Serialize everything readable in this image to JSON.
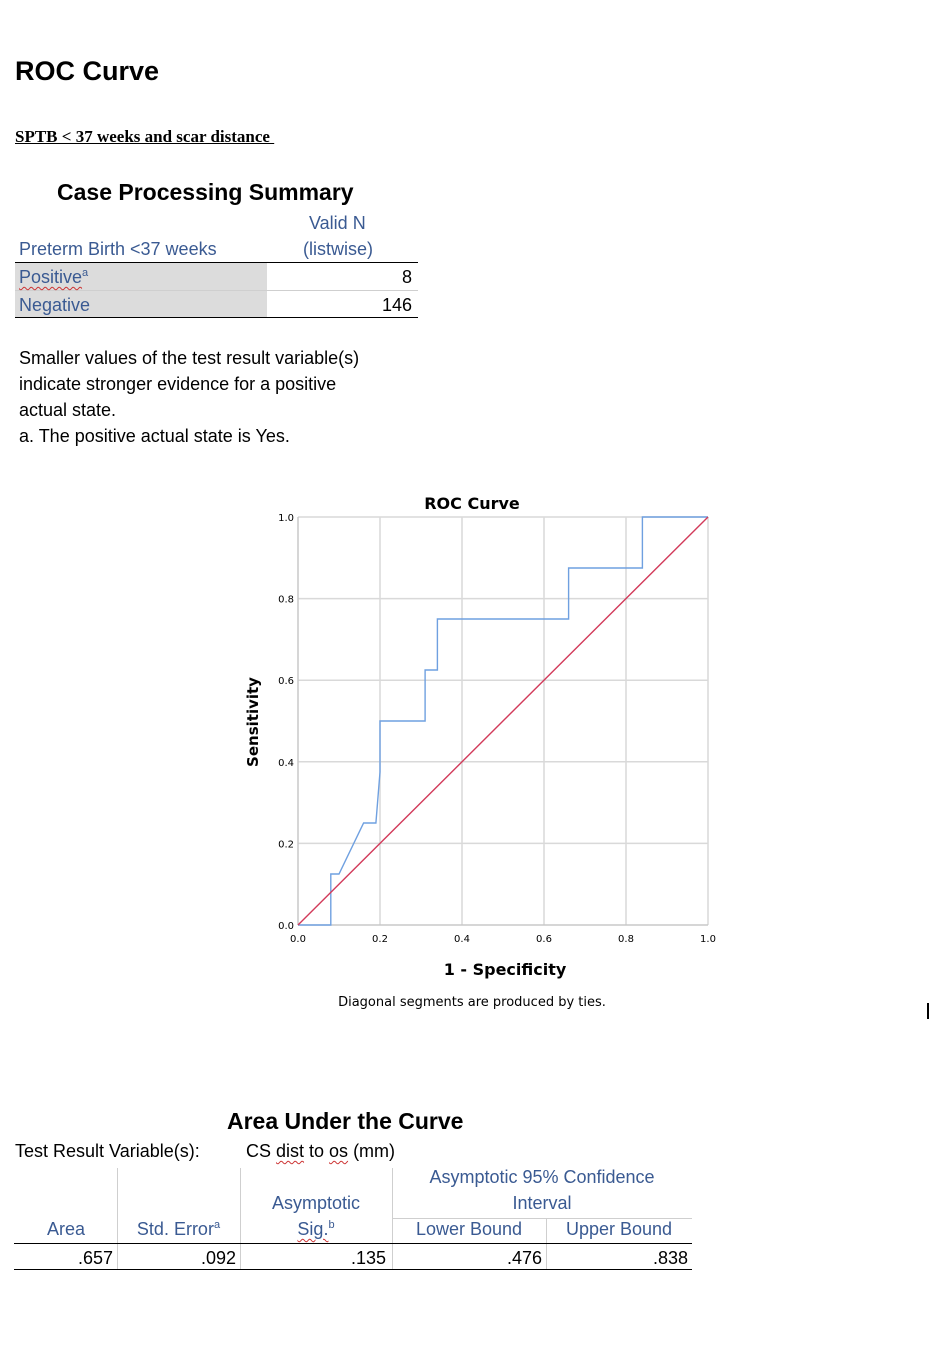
{
  "page_title": "ROC Curve",
  "subheading": "SPTB < 37 weeks and scar distance ",
  "case_processing": {
    "title": "Case Processing Summary",
    "col_header_line1": "Valid N",
    "col_header_line2": "(listwise)",
    "row_header": "Preterm Birth <37 weeks",
    "rows": [
      {
        "label": "Positive",
        "sup": "a",
        "value": "8"
      },
      {
        "label": "Negative",
        "value": "146"
      }
    ]
  },
  "notes": {
    "line1": "Smaller values of the test result variable(s)",
    "line2": "indicate stronger evidence for a positive",
    "line3": "actual state.",
    "footnote_a": "a. The positive actual state is Yes."
  },
  "chart_data": {
    "type": "line",
    "title": "ROC Curve",
    "xlabel": "1 - Specificity",
    "ylabel": "Sensitivity",
    "footnote": "Diagonal segments are produced by ties.",
    "xlim": [
      0,
      1
    ],
    "ylim": [
      0,
      1
    ],
    "x_ticks": [
      "0.0",
      "0.2",
      "0.4",
      "0.6",
      "0.8",
      "1.0"
    ],
    "y_ticks": [
      "0.0",
      "0.2",
      "0.4",
      "0.6",
      "0.8",
      "1.0"
    ],
    "grid": true,
    "series": [
      {
        "color": "#6fa0e0",
        "x": [
          0.0,
          0.08,
          0.08,
          0.1,
          0.16,
          0.19,
          0.2,
          0.2,
          0.31,
          0.31,
          0.34,
          0.34,
          0.66,
          0.66,
          0.84,
          0.84,
          1.0
        ],
        "y": [
          0.0,
          0.0,
          0.125,
          0.125,
          0.25,
          0.25,
          0.375,
          0.5,
          0.5,
          0.625,
          0.625,
          0.75,
          0.75,
          0.875,
          0.875,
          1.0,
          1.0
        ]
      },
      {
        "color": "#d23a5a",
        "x": [
          0,
          1
        ],
        "y": [
          0,
          1
        ]
      }
    ]
  },
  "auc": {
    "title": "Area Under the Curve",
    "test_var_label": "Test Result Variable(s):",
    "test_var_value_pre": "CS ",
    "test_var_value_dist": "dist",
    "test_var_value_mid": " to ",
    "test_var_value_os": "os",
    "test_var_value_post": " (mm)",
    "headers": {
      "area": "Area",
      "std_error": "Std. Error",
      "std_error_sup": "a",
      "asym_sig_line1": "Asymptotic",
      "asym_sig_line2": "Sig.",
      "asym_sig_sup": "b",
      "ci_line1": "Asymptotic 95% Confidence",
      "ci_line2": "Interval",
      "lower": "Lower Bound",
      "upper": "Upper Bound"
    },
    "values": {
      "area": ".657",
      "std_error": ".092",
      "asym_sig": ".135",
      "lower": ".476",
      "upper": ".838"
    }
  }
}
